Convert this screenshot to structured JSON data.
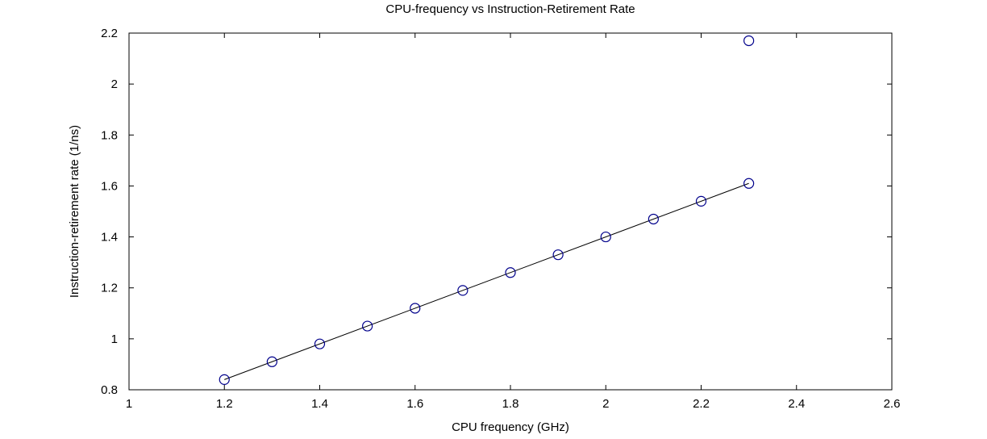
{
  "chart_data": {
    "type": "scatter",
    "title": "CPU-frequency vs Instruction-Retirement Rate",
    "xlabel": "CPU frequency (GHz)",
    "ylabel": "Instruction-retirement rate (1/ns)",
    "xlim": [
      1,
      2.6
    ],
    "ylim": [
      0.8,
      2.2
    ],
    "x_ticks": [
      1,
      1.2,
      1.4,
      1.6,
      1.8,
      2,
      2.2,
      2.4,
      2.6
    ],
    "x_tick_labels": [
      "1",
      "1.2",
      "1.4",
      "1.6",
      "1.8",
      "2",
      "2.2",
      "2.4",
      "2.6"
    ],
    "y_ticks": [
      0.8,
      1,
      1.2,
      1.4,
      1.6,
      1.8,
      2,
      2.2
    ],
    "y_tick_labels": [
      "0.8",
      "1",
      "1.2",
      "1.4",
      "1.6",
      "1.8",
      "2",
      "2.2"
    ],
    "grid": false,
    "series": [
      {
        "marker": "circle",
        "color": "#00008b",
        "points": [
          {
            "x": 1.2,
            "y": 0.84
          },
          {
            "x": 1.3,
            "y": 0.91
          },
          {
            "x": 1.4,
            "y": 0.98
          },
          {
            "x": 1.5,
            "y": 1.05
          },
          {
            "x": 1.6,
            "y": 1.12
          },
          {
            "x": 1.7,
            "y": 1.19
          },
          {
            "x": 1.8,
            "y": 1.26
          },
          {
            "x": 1.9,
            "y": 1.33
          },
          {
            "x": 2.0,
            "y": 1.4
          },
          {
            "x": 2.1,
            "y": 1.47
          },
          {
            "x": 2.2,
            "y": 1.54
          },
          {
            "x": 2.3,
            "y": 1.61
          },
          {
            "x": 2.3,
            "y": 2.17
          }
        ]
      },
      {
        "marker": "line",
        "color": "#000000",
        "points": [
          {
            "x": 1.2,
            "y": 0.84
          },
          {
            "x": 2.3,
            "y": 1.61
          }
        ]
      }
    ]
  }
}
